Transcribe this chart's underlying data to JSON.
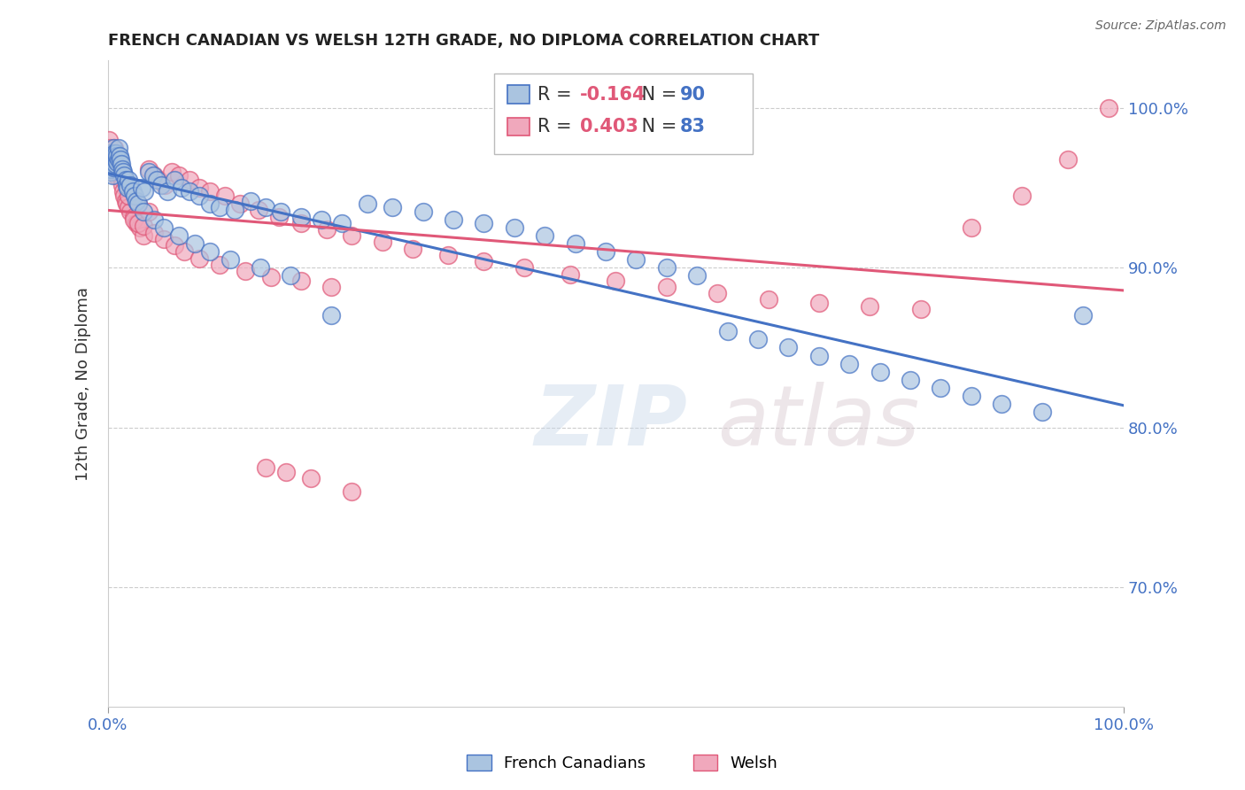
{
  "title": "FRENCH CANADIAN VS WELSH 12TH GRADE, NO DIPLOMA CORRELATION CHART",
  "source_text": "Source: ZipAtlas.com",
  "ylabel": "12th Grade, No Diploma",
  "xlim": [
    0.0,
    1.0
  ],
  "ylim": [
    0.625,
    1.03
  ],
  "yticks": [
    0.7,
    0.8,
    0.9,
    1.0
  ],
  "legend_label_blue": "French Canadians",
  "legend_label_pink": "Welsh",
  "R_blue": -0.164,
  "N_blue": 90,
  "R_pink": 0.403,
  "N_pink": 83,
  "blue_color": "#aac4e0",
  "pink_color": "#f0a8bc",
  "blue_line_color": "#4472c4",
  "pink_line_color": "#e05878",
  "watermark": "ZIPatlas",
  "blue_points_x": [
    0.001,
    0.002,
    0.002,
    0.003,
    0.003,
    0.003,
    0.004,
    0.004,
    0.005,
    0.005,
    0.005,
    0.006,
    0.006,
    0.007,
    0.007,
    0.008,
    0.008,
    0.009,
    0.009,
    0.01,
    0.01,
    0.011,
    0.012,
    0.013,
    0.014,
    0.015,
    0.016,
    0.017,
    0.018,
    0.019,
    0.02,
    0.022,
    0.024,
    0.026,
    0.028,
    0.03,
    0.033,
    0.036,
    0.04,
    0.044,
    0.048,
    0.052,
    0.058,
    0.065,
    0.072,
    0.08,
    0.09,
    0.1,
    0.11,
    0.125,
    0.14,
    0.155,
    0.17,
    0.19,
    0.21,
    0.23,
    0.255,
    0.28,
    0.31,
    0.34,
    0.37,
    0.4,
    0.43,
    0.46,
    0.49,
    0.52,
    0.55,
    0.58,
    0.61,
    0.64,
    0.67,
    0.7,
    0.73,
    0.76,
    0.79,
    0.82,
    0.85,
    0.88,
    0.92,
    0.96,
    0.035,
    0.045,
    0.055,
    0.07,
    0.085,
    0.1,
    0.12,
    0.15,
    0.18,
    0.22
  ],
  "blue_points_y": [
    0.965,
    0.968,
    0.972,
    0.96,
    0.962,
    0.97,
    0.958,
    0.965,
    0.963,
    0.97,
    0.975,
    0.968,
    0.972,
    0.965,
    0.97,
    0.968,
    0.972,
    0.966,
    0.97,
    0.968,
    0.975,
    0.97,
    0.968,
    0.965,
    0.962,
    0.96,
    0.958,
    0.955,
    0.952,
    0.95,
    0.955,
    0.952,
    0.948,
    0.945,
    0.942,
    0.94,
    0.95,
    0.948,
    0.96,
    0.958,
    0.955,
    0.952,
    0.948,
    0.955,
    0.95,
    0.948,
    0.945,
    0.94,
    0.938,
    0.936,
    0.942,
    0.938,
    0.935,
    0.932,
    0.93,
    0.928,
    0.94,
    0.938,
    0.935,
    0.93,
    0.928,
    0.925,
    0.92,
    0.915,
    0.91,
    0.905,
    0.9,
    0.895,
    0.86,
    0.855,
    0.85,
    0.845,
    0.84,
    0.835,
    0.83,
    0.825,
    0.82,
    0.815,
    0.81,
    0.87,
    0.935,
    0.93,
    0.925,
    0.92,
    0.915,
    0.91,
    0.905,
    0.9,
    0.895,
    0.87
  ],
  "pink_points_x": [
    0.001,
    0.002,
    0.002,
    0.003,
    0.003,
    0.004,
    0.004,
    0.005,
    0.005,
    0.006,
    0.006,
    0.007,
    0.007,
    0.008,
    0.009,
    0.01,
    0.011,
    0.012,
    0.013,
    0.014,
    0.015,
    0.016,
    0.017,
    0.018,
    0.02,
    0.022,
    0.025,
    0.028,
    0.031,
    0.035,
    0.04,
    0.045,
    0.05,
    0.056,
    0.063,
    0.07,
    0.08,
    0.09,
    0.1,
    0.115,
    0.13,
    0.148,
    0.168,
    0.19,
    0.215,
    0.24,
    0.27,
    0.3,
    0.335,
    0.37,
    0.41,
    0.455,
    0.5,
    0.55,
    0.6,
    0.65,
    0.7,
    0.75,
    0.8,
    0.85,
    0.9,
    0.945,
    0.985,
    0.025,
    0.03,
    0.035,
    0.045,
    0.055,
    0.065,
    0.075,
    0.09,
    0.11,
    0.135,
    0.16,
    0.19,
    0.22,
    0.155,
    0.175,
    0.2,
    0.24,
    0.02,
    0.03,
    0.04
  ],
  "pink_points_y": [
    0.98,
    0.975,
    0.968,
    0.972,
    0.965,
    0.97,
    0.96,
    0.968,
    0.962,
    0.975,
    0.968,
    0.96,
    0.965,
    0.958,
    0.962,
    0.968,
    0.965,
    0.96,
    0.956,
    0.952,
    0.948,
    0.945,
    0.942,
    0.94,
    0.938,
    0.935,
    0.932,
    0.928,
    0.925,
    0.92,
    0.962,
    0.958,
    0.955,
    0.952,
    0.96,
    0.958,
    0.955,
    0.95,
    0.948,
    0.945,
    0.94,
    0.936,
    0.932,
    0.928,
    0.924,
    0.92,
    0.916,
    0.912,
    0.908,
    0.904,
    0.9,
    0.896,
    0.892,
    0.888,
    0.884,
    0.88,
    0.878,
    0.876,
    0.874,
    0.925,
    0.945,
    0.968,
    1.0,
    0.93,
    0.928,
    0.926,
    0.922,
    0.918,
    0.914,
    0.91,
    0.906,
    0.902,
    0.898,
    0.894,
    0.892,
    0.888,
    0.775,
    0.772,
    0.768,
    0.76,
    0.945,
    0.94,
    0.935
  ]
}
